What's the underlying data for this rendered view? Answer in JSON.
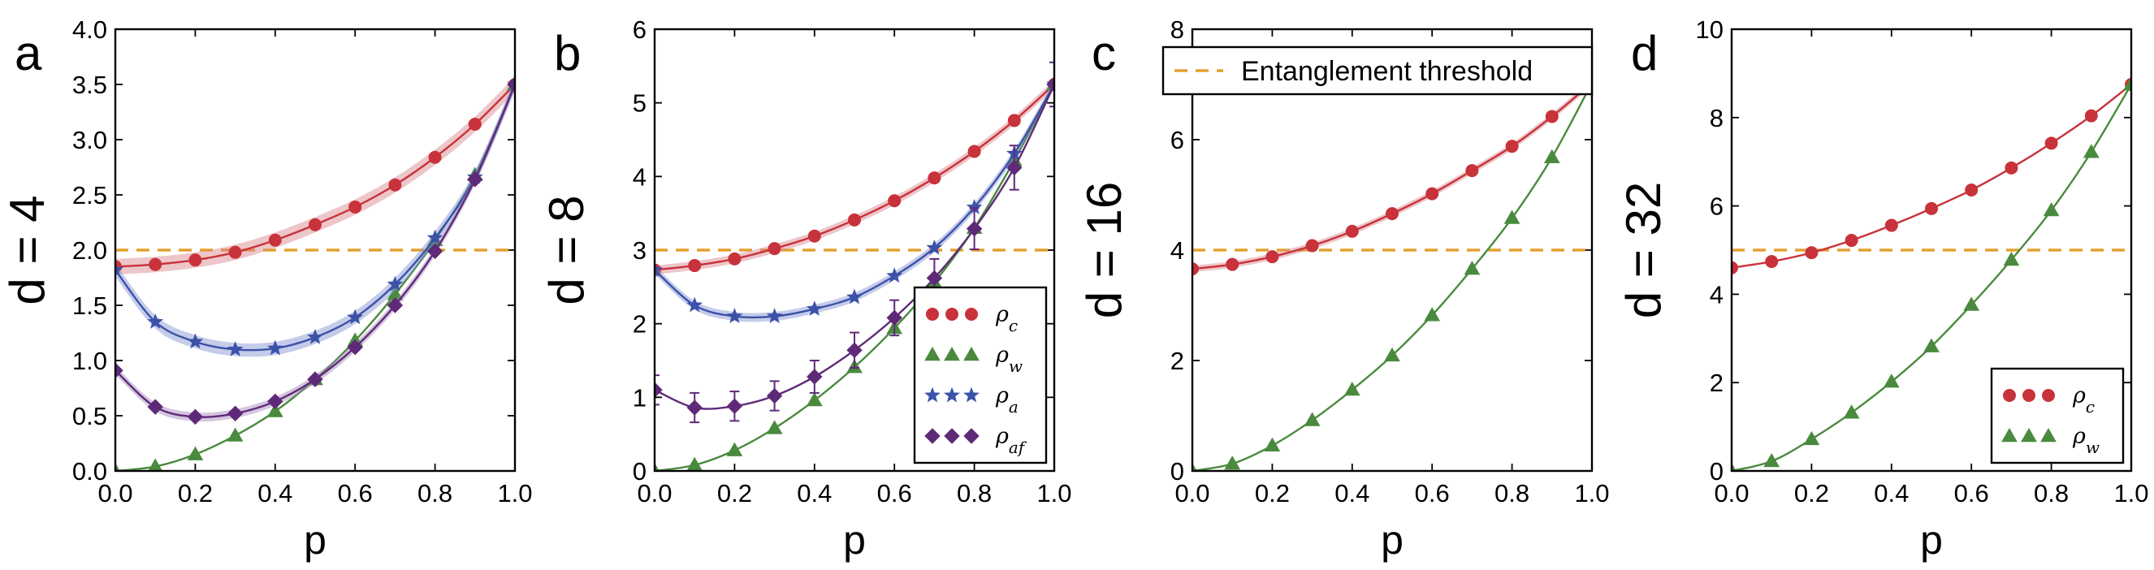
{
  "colors": {
    "rho_c": "#c8323a",
    "rho_w": "#4a8a3e",
    "rho_a": "#3c52a8",
    "rho_af": "#5e2a78",
    "threshold": "#e3a030",
    "band_c": "#d88088",
    "band_a": "#7f8ed0",
    "band_af": "#a080b8"
  },
  "chart_data": [
    {
      "type": "line",
      "panel_label": "a",
      "ylabel": "d = 4",
      "xlabel": "p",
      "xlim": [
        0,
        1
      ],
      "ylim": [
        0,
        4
      ],
      "xticks": [
        "0.0",
        "0.2",
        "0.4",
        "0.6",
        "0.8",
        "1.0"
      ],
      "yticks": [
        "0.0",
        "0.5",
        "1.0",
        "1.5",
        "2.0",
        "2.5",
        "3.0",
        "3.5",
        "4.0"
      ],
      "threshold": 2,
      "x": [
        0,
        0.1,
        0.2,
        0.3,
        0.4,
        0.5,
        0.6,
        0.7,
        0.8,
        0.9,
        1.0
      ],
      "series": [
        {
          "name": "ρc",
          "marker": "circle",
          "values": [
            1.85,
            1.87,
            1.91,
            1.98,
            2.09,
            2.23,
            2.39,
            2.59,
            2.84,
            3.14,
            3.5
          ],
          "band": 0.07
        },
        {
          "name": "ρw",
          "marker": "triangle",
          "values": [
            0,
            0.04,
            0.15,
            0.32,
            0.54,
            0.83,
            1.18,
            1.6,
            2.09,
            2.68,
            3.5
          ]
        },
        {
          "name": "ρa",
          "marker": "star",
          "values": [
            1.82,
            1.35,
            1.17,
            1.1,
            1.11,
            1.21,
            1.39,
            1.69,
            2.11,
            2.66,
            3.5
          ],
          "band": 0.06
        },
        {
          "name": "ρaf",
          "marker": "diamond",
          "values": [
            0.91,
            0.58,
            0.49,
            0.52,
            0.63,
            0.83,
            1.12,
            1.5,
            1.99,
            2.64,
            3.5
          ],
          "band": 0.04
        }
      ]
    },
    {
      "type": "line",
      "panel_label": "b",
      "ylabel": "d = 8",
      "xlabel": "p",
      "xlim": [
        0,
        1
      ],
      "ylim": [
        0,
        6
      ],
      "xticks": [
        "0.0",
        "0.2",
        "0.4",
        "0.6",
        "0.8",
        "1.0"
      ],
      "yticks": [
        "0",
        "1",
        "2",
        "3",
        "4",
        "5",
        "6"
      ],
      "threshold": 3,
      "x": [
        0,
        0.1,
        0.2,
        0.3,
        0.4,
        0.5,
        0.6,
        0.7,
        0.8,
        0.9,
        1.0
      ],
      "legend": {
        "position": "lower-right",
        "entries": [
          "ρc",
          "ρw",
          "ρa",
          "ρaf"
        ]
      },
      "series": [
        {
          "name": "ρc",
          "marker": "circle",
          "values": [
            2.73,
            2.79,
            2.88,
            3.02,
            3.19,
            3.41,
            3.67,
            3.98,
            4.34,
            4.76,
            5.25
          ],
          "band": 0.06
        },
        {
          "name": "ρw",
          "marker": "triangle",
          "values": [
            0,
            0.08,
            0.28,
            0.58,
            0.96,
            1.41,
            1.94,
            2.56,
            3.3,
            4.22,
            5.25
          ]
        },
        {
          "name": "ρa",
          "marker": "star",
          "values": [
            2.73,
            2.25,
            2.1,
            2.1,
            2.2,
            2.36,
            2.65,
            3.03,
            3.58,
            4.31,
            5.25
          ],
          "band": 0.06
        },
        {
          "name": "ρaf",
          "marker": "diamond",
          "values": [
            1.1,
            0.86,
            0.88,
            1.02,
            1.28,
            1.64,
            2.08,
            2.62,
            3.29,
            4.12,
            5.25
          ],
          "err": [
            0.2,
            0.2,
            0.2,
            0.2,
            0.22,
            0.24,
            0.24,
            0.26,
            0.28,
            0.3,
            0.3
          ]
        }
      ]
    },
    {
      "type": "line",
      "panel_label": "c",
      "ylabel": "d = 16",
      "xlabel": "p",
      "xlim": [
        0,
        1
      ],
      "ylim": [
        0,
        8
      ],
      "xticks": [
        "0.0",
        "0.2",
        "0.4",
        "0.6",
        "0.8",
        "1.0"
      ],
      "yticks": [
        "0",
        "2",
        "4",
        "6",
        "8"
      ],
      "threshold": 4,
      "x": [
        0,
        0.1,
        0.2,
        0.3,
        0.4,
        0.5,
        0.6,
        0.7,
        0.8,
        0.9,
        1.0
      ],
      "legend": {
        "position": "top-left",
        "entries": [
          "Entanglement threshold"
        ]
      },
      "series": [
        {
          "name": "ρc",
          "marker": "circle",
          "values": [
            3.66,
            3.74,
            3.88,
            4.08,
            4.34,
            4.66,
            5.02,
            5.44,
            5.88,
            6.42,
            7.03
          ],
          "band": 0.06
        },
        {
          "name": "ρw",
          "marker": "triangle",
          "values": [
            0,
            0.13,
            0.46,
            0.92,
            1.47,
            2.09,
            2.82,
            3.66,
            4.58,
            5.68,
            7.03
          ]
        }
      ]
    },
    {
      "type": "line",
      "panel_label": "d",
      "ylabel": "d = 32",
      "xlabel": "p",
      "xlim": [
        0,
        1
      ],
      "ylim": [
        0,
        10
      ],
      "xticks": [
        "0.0",
        "0.2",
        "0.4",
        "0.6",
        "0.8",
        "1.0"
      ],
      "yticks": [
        "0",
        "2",
        "4",
        "6",
        "8",
        "10"
      ],
      "threshold": 5,
      "x": [
        0,
        0.1,
        0.2,
        0.3,
        0.4,
        0.5,
        0.6,
        0.7,
        0.8,
        0.9,
        1.0
      ],
      "legend": {
        "position": "lower-right",
        "entries": [
          "ρc",
          "ρw"
        ]
      },
      "series": [
        {
          "name": "ρc",
          "marker": "circle",
          "values": [
            4.6,
            4.74,
            4.94,
            5.22,
            5.56,
            5.94,
            6.36,
            6.86,
            7.42,
            8.04,
            8.75
          ]
        },
        {
          "name": "ρw",
          "marker": "triangle",
          "values": [
            0,
            0.22,
            0.72,
            1.32,
            2.02,
            2.82,
            3.76,
            4.78,
            5.9,
            7.22,
            8.75
          ]
        }
      ]
    }
  ]
}
